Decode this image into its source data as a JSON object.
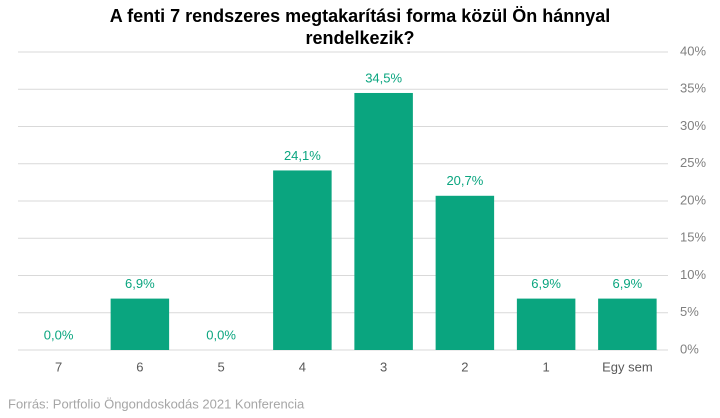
{
  "chart_data": {
    "type": "bar",
    "title": "A fenti 7 rendszeres megtakarítási forma közül Ön hánnyal rendelkezik?",
    "categories": [
      "7",
      "6",
      "5",
      "4",
      "3",
      "2",
      "1",
      "Egy sem"
    ],
    "values": [
      0.0,
      6.9,
      0.0,
      24.1,
      34.5,
      20.7,
      6.9,
      6.9
    ],
    "value_labels": [
      "0,0%",
      "6,9%",
      "0,0%",
      "24,1%",
      "34,5%",
      "20,7%",
      "6,9%",
      "6,9%"
    ],
    "color": "#0aa57f",
    "ylim": [
      0,
      40
    ],
    "yticks": [
      {
        "value": 0,
        "label": "0%"
      },
      {
        "value": 5,
        "label": "5%"
      },
      {
        "value": 10,
        "label": "10%"
      },
      {
        "value": 15,
        "label": "15%"
      },
      {
        "value": 20,
        "label": "20%"
      },
      {
        "value": 25,
        "label": "25%"
      },
      {
        "value": 30,
        "label": "30%"
      },
      {
        "value": 35,
        "label": "35%"
      },
      {
        "value": 40,
        "label": "40%"
      }
    ],
    "grid": true,
    "source": "Forrás: Portfolio Öngondoskodás 2021 Konferencia"
  }
}
